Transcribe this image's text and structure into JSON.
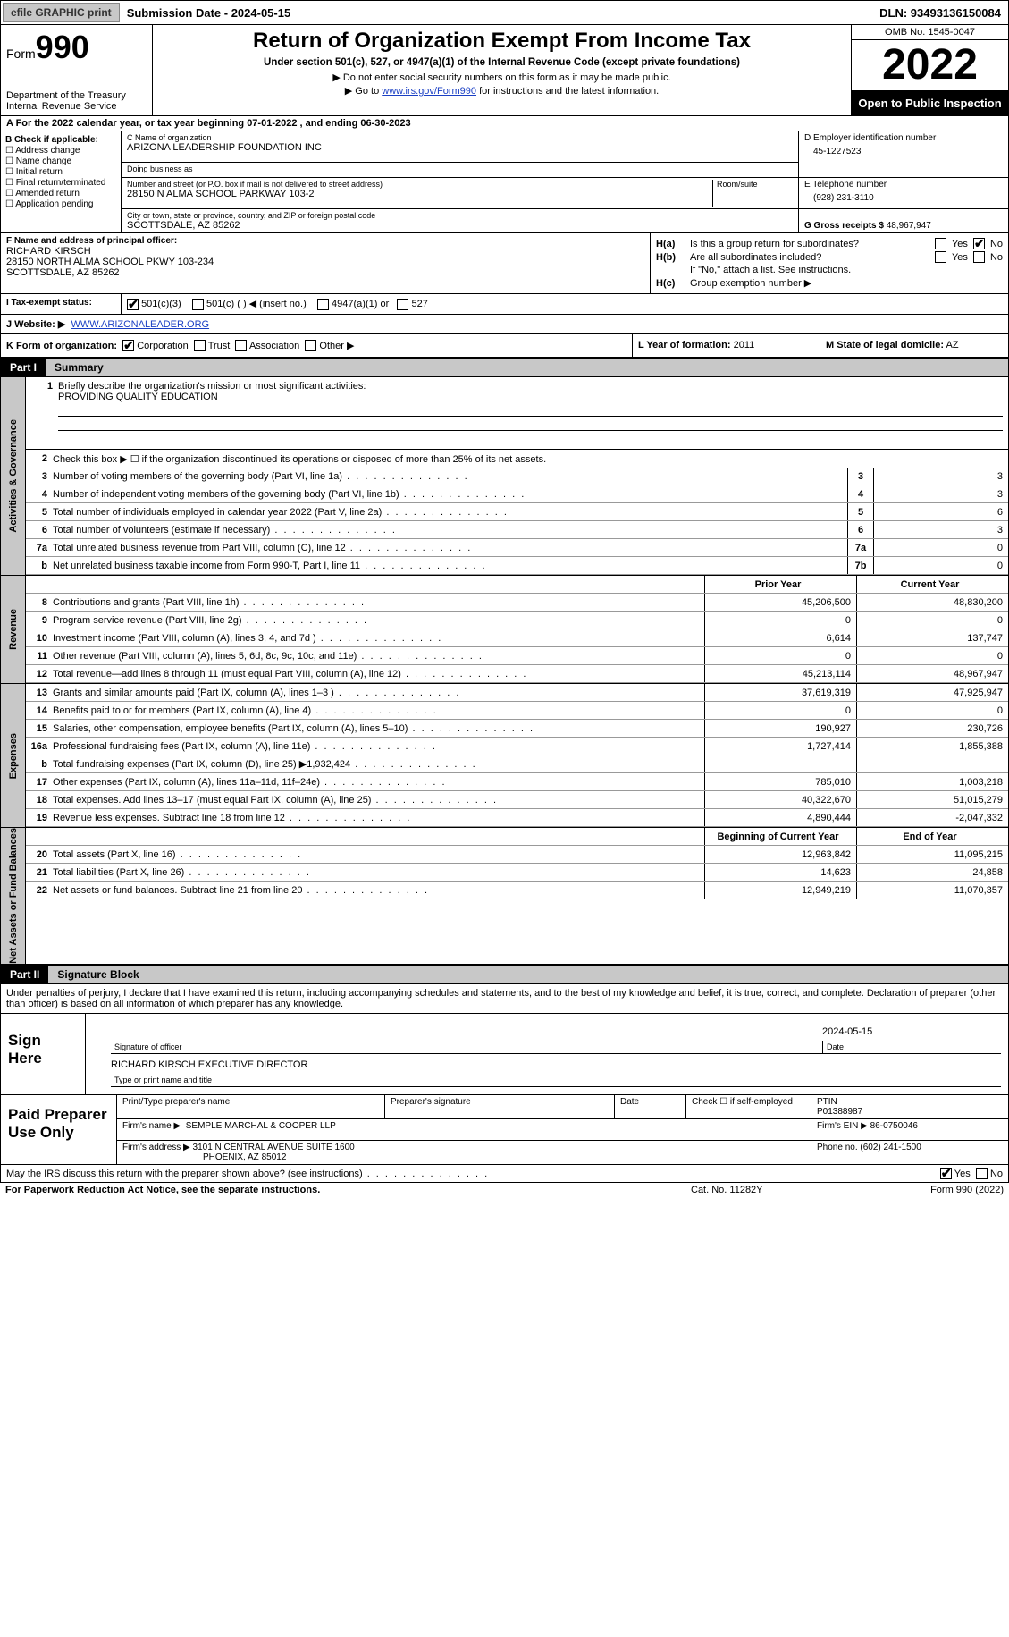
{
  "topbar": {
    "efile_btn": "efile GRAPHIC print",
    "submission_date": "Submission Date - 2024-05-15",
    "dln": "DLN: 93493136150084"
  },
  "header": {
    "form_prefix": "Form",
    "form_number": "990",
    "dept": "Department of the Treasury Internal Revenue Service",
    "title": "Return of Organization Exempt From Income Tax",
    "subtitle": "Under section 501(c), 527, or 4947(a)(1) of the Internal Revenue Code (except private foundations)",
    "note1": "▶ Do not enter social security numbers on this form as it may be made public.",
    "note2_prefix": "▶ Go to ",
    "note2_link": "www.irs.gov/Form990",
    "note2_suffix": " for instructions and the latest information.",
    "omb": "OMB No. 1545-0047",
    "year": "2022",
    "open": "Open to Public Inspection"
  },
  "row_a": "A For the 2022 calendar year, or tax year beginning 07-01-2022   , and ending 06-30-2023",
  "block_b": {
    "label": "B Check if applicable:",
    "items": [
      "☐ Address change",
      "☐ Name change",
      "☐ Initial return",
      "☐ Final return/terminated",
      "☐ Amended return",
      "☐ Application pending"
    ]
  },
  "block_c": {
    "name_label": "C Name of organization",
    "name": "ARIZONA LEADERSHIP FOUNDATION INC",
    "dba_label": "Doing business as",
    "dba": "",
    "addr_label": "Number and street (or P.O. box if mail is not delivered to street address)",
    "room_label": "Room/suite",
    "addr": "28150 N ALMA SCHOOL PARKWAY 103-2",
    "city_label": "City or town, state or province, country, and ZIP or foreign postal code",
    "city": "SCOTTSDALE, AZ  85262"
  },
  "block_d": {
    "label": "D Employer identification number",
    "value": "45-1227523"
  },
  "block_e": {
    "label": "E Telephone number",
    "value": "(928) 231-3110"
  },
  "block_g": {
    "label": "G Gross receipts $",
    "value": "48,967,947"
  },
  "block_f": {
    "label": "F  Name and address of principal officer:",
    "name": "RICHARD KIRSCH",
    "addr1": "28150 NORTH ALMA SCHOOL PKWY 103-234",
    "addr2": "SCOTTSDALE, AZ  85262"
  },
  "block_h": {
    "ha_label": "H(a)",
    "ha_text": "Is this a group return for subordinates?",
    "ha_yes": "Yes",
    "ha_no": "No",
    "hb_label": "H(b)",
    "hb_text": "Are all subordinates included?",
    "hb_note": "If \"No,\" attach a list. See instructions.",
    "hc_label": "H(c)",
    "hc_text": "Group exemption number ▶"
  },
  "row_i": {
    "label": "I   Tax-exempt status:",
    "opt1": "501(c)(3)",
    "opt2": "501(c) (  ) ◀ (insert no.)",
    "opt3": "4947(a)(1) or",
    "opt4": "527"
  },
  "row_j": {
    "label": "J  Website: ▶",
    "url": "WWW.ARIZONALEADER.ORG"
  },
  "row_k": {
    "label": "K Form of organization:",
    "corp": "Corporation",
    "trust": "Trust",
    "assoc": "Association",
    "other": "Other ▶"
  },
  "row_l": {
    "label": "L Year of formation:",
    "value": "2011"
  },
  "row_m": {
    "label": "M State of legal domicile:",
    "value": "AZ"
  },
  "part1": {
    "num": "Part I",
    "title": "Summary"
  },
  "vtabs": {
    "gov": "Activities & Governance",
    "rev": "Revenue",
    "exp": "Expenses",
    "net": "Net Assets or Fund Balances"
  },
  "summary": {
    "l1_label": "Briefly describe the organization's mission or most significant activities:",
    "l1_value": "PROVIDING QUALITY EDUCATION",
    "l2": "Check this box ▶ ☐  if the organization discontinued its operations or disposed of more than 25% of its net assets.",
    "lines_single": [
      {
        "n": "3",
        "desc": "Number of voting members of the governing body (Part VI, line 1a)",
        "box": "3",
        "val": "3"
      },
      {
        "n": "4",
        "desc": "Number of independent voting members of the governing body (Part VI, line 1b)",
        "box": "4",
        "val": "3"
      },
      {
        "n": "5",
        "desc": "Total number of individuals employed in calendar year 2022 (Part V, line 2a)",
        "box": "5",
        "val": "6"
      },
      {
        "n": "6",
        "desc": "Total number of volunteers (estimate if necessary)",
        "box": "6",
        "val": "3"
      },
      {
        "n": "7a",
        "desc": "Total unrelated business revenue from Part VIII, column (C), line 12",
        "box": "7a",
        "val": "0"
      },
      {
        "n": "b",
        "desc": "Net unrelated business taxable income from Form 990-T, Part I, line 11",
        "box": "7b",
        "val": "0"
      }
    ],
    "col_headers": {
      "prior": "Prior Year",
      "curr": "Current Year"
    },
    "revenue": [
      {
        "n": "8",
        "desc": "Contributions and grants (Part VIII, line 1h)",
        "prior": "45,206,500",
        "curr": "48,830,200"
      },
      {
        "n": "9",
        "desc": "Program service revenue (Part VIII, line 2g)",
        "prior": "0",
        "curr": "0"
      },
      {
        "n": "10",
        "desc": "Investment income (Part VIII, column (A), lines 3, 4, and 7d )",
        "prior": "6,614",
        "curr": "137,747"
      },
      {
        "n": "11",
        "desc": "Other revenue (Part VIII, column (A), lines 5, 6d, 8c, 9c, 10c, and 11e)",
        "prior": "0",
        "curr": "0"
      },
      {
        "n": "12",
        "desc": "Total revenue—add lines 8 through 11 (must equal Part VIII, column (A), line 12)",
        "prior": "45,213,114",
        "curr": "48,967,947"
      }
    ],
    "expenses": [
      {
        "n": "13",
        "desc": "Grants and similar amounts paid (Part IX, column (A), lines 1–3 )",
        "prior": "37,619,319",
        "curr": "47,925,947"
      },
      {
        "n": "14",
        "desc": "Benefits paid to or for members (Part IX, column (A), line 4)",
        "prior": "0",
        "curr": "0"
      },
      {
        "n": "15",
        "desc": "Salaries, other compensation, employee benefits (Part IX, column (A), lines 5–10)",
        "prior": "190,927",
        "curr": "230,726"
      },
      {
        "n": "16a",
        "desc": "Professional fundraising fees (Part IX, column (A), line 11e)",
        "prior": "1,727,414",
        "curr": "1,855,388"
      },
      {
        "n": "b",
        "desc": "Total fundraising expenses (Part IX, column (D), line 25) ▶1,932,424",
        "prior": "",
        "curr": "",
        "shaded": true
      },
      {
        "n": "17",
        "desc": "Other expenses (Part IX, column (A), lines 11a–11d, 11f–24e)",
        "prior": "785,010",
        "curr": "1,003,218"
      },
      {
        "n": "18",
        "desc": "Total expenses. Add lines 13–17 (must equal Part IX, column (A), line 25)",
        "prior": "40,322,670",
        "curr": "51,015,279"
      },
      {
        "n": "19",
        "desc": "Revenue less expenses. Subtract line 18 from line 12",
        "prior": "4,890,444",
        "curr": "-2,047,332"
      }
    ],
    "net_headers": {
      "prior": "Beginning of Current Year",
      "curr": "End of Year"
    },
    "netassets": [
      {
        "n": "20",
        "desc": "Total assets (Part X, line 16)",
        "prior": "12,963,842",
        "curr": "11,095,215"
      },
      {
        "n": "21",
        "desc": "Total liabilities (Part X, line 26)",
        "prior": "14,623",
        "curr": "24,858"
      },
      {
        "n": "22",
        "desc": "Net assets or fund balances. Subtract line 21 from line 20",
        "prior": "12,949,219",
        "curr": "11,070,357"
      }
    ]
  },
  "part2": {
    "num": "Part II",
    "title": "Signature Block"
  },
  "sig_text": "Under penalties of perjury, I declare that I have examined this return, including accompanying schedules and statements, and to the best of my knowledge and belief, it is true, correct, and complete. Declaration of preparer (other than officer) is based on all information of which preparer has any knowledge.",
  "sign": {
    "label": "Sign Here",
    "sig_officer_label": "Signature of officer",
    "date_label": "Date",
    "date_value": "2024-05-15",
    "name_value": "RICHARD KIRSCH  EXECUTIVE DIRECTOR",
    "name_label": "Type or print name and title"
  },
  "paid": {
    "label": "Paid Preparer Use Only",
    "r1": {
      "c1_label": "Print/Type preparer's name",
      "c2_label": "Preparer's signature",
      "c3_label": "Date",
      "c4_label": "Check ☐ if self-employed",
      "c5_label": "PTIN",
      "c5_val": "P01388987"
    },
    "r2": {
      "firm_label": "Firm's name   ▶",
      "firm": "SEMPLE MARCHAL & COOPER LLP",
      "ein_label": "Firm's EIN ▶",
      "ein": "86-0750046"
    },
    "r3": {
      "addr_label": "Firm's address ▶",
      "addr1": "3101 N CENTRAL AVENUE SUITE 1600",
      "addr2": "PHOENIX, AZ  85012",
      "phone_label": "Phone no.",
      "phone": "(602) 241-1500"
    }
  },
  "discuss": {
    "text": "May the IRS discuss this return with the preparer shown above? (see instructions)",
    "yes": "Yes",
    "no": "No"
  },
  "footer": {
    "l": "For Paperwork Reduction Act Notice, see the separate instructions.",
    "m": "Cat. No. 11282Y",
    "r": "Form 990 (2022)"
  }
}
